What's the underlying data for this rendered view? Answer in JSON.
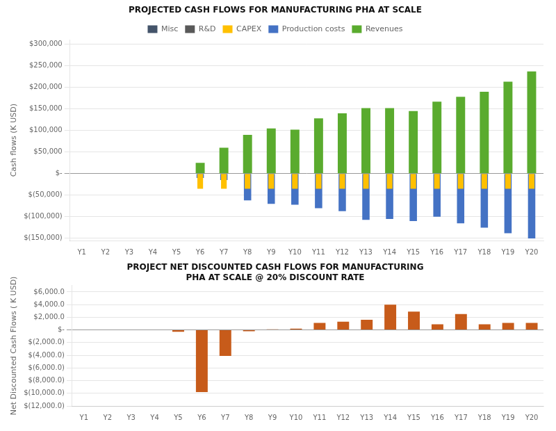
{
  "chart_data": [
    {
      "type": "bar",
      "title": "PROJECTED CASH FLOWS FOR MANUFACTURING PHA AT SCALE",
      "ylabel": "Cash flows (K USD)",
      "categories": [
        "Y1",
        "Y2",
        "Y3",
        "Y4",
        "Y5",
        "Y6",
        "Y7",
        "Y8",
        "Y9",
        "Y10",
        "Y11",
        "Y12",
        "Y13",
        "Y14",
        "Y15",
        "Y16",
        "Y17",
        "Y18",
        "Y19",
        "Y20"
      ],
      "series": [
        {
          "name": "Revenues",
          "color": "#5AAB2E",
          "values": [
            0,
            0,
            0,
            0,
            0,
            25000,
            60000,
            90000,
            105000,
            102000,
            128000,
            140000,
            152000,
            152000,
            145000,
            167000,
            178000,
            190000,
            213000,
            237000
          ]
        },
        {
          "name": "Production costs",
          "color": "#4472C4",
          "values": [
            0,
            0,
            0,
            0,
            0,
            -10000,
            -15000,
            -62000,
            -70000,
            -72000,
            -80000,
            -87000,
            -107000,
            -105000,
            -110000,
            -100000,
            -115000,
            -125000,
            -138000,
            -150000
          ]
        },
        {
          "name": "CAPEX",
          "color": "#FFC000",
          "values": [
            0,
            0,
            0,
            0,
            0,
            -35000,
            -35000,
            -35000,
            -35000,
            -35000,
            -35000,
            -35000,
            -35000,
            -35000,
            -35000,
            -35000,
            -35000,
            -35000,
            -35000,
            -35000
          ]
        },
        {
          "name": "R&D",
          "color": "#595959",
          "values": [
            0,
            0,
            0,
            0,
            0,
            0,
            0,
            0,
            0,
            0,
            0,
            0,
            0,
            0,
            0,
            0,
            0,
            0,
            0,
            0
          ]
        },
        {
          "name": "Misc",
          "color": "#44546A",
          "values": [
            0,
            0,
            0,
            0,
            0,
            0,
            0,
            0,
            0,
            0,
            0,
            0,
            0,
            0,
            0,
            0,
            0,
            0,
            0,
            0
          ]
        }
      ],
      "ylim": [
        -155000,
        310000
      ],
      "yticks": [
        {
          "value": -150000,
          "label": "$(150,000)"
        },
        {
          "value": -100000,
          "label": "$(100,000)"
        },
        {
          "value": -50000,
          "label": "$(50,000)"
        },
        {
          "value": 0,
          "label": "$-"
        },
        {
          "value": 50000,
          "label": "$50,000"
        },
        {
          "value": 100000,
          "label": "$100,000"
        },
        {
          "value": 150000,
          "label": "$150,000"
        },
        {
          "value": 200000,
          "label": "$200,000"
        },
        {
          "value": 250000,
          "label": "$250,000"
        },
        {
          "value": 300000,
          "label": "$300,000"
        }
      ],
      "grid": true,
      "legend": "top"
    },
    {
      "type": "bar",
      "title": "PROJECT NET DISCOUNTED CASH FLOWS FOR MANUFACTURING\nPHA AT SCALE @ 20% DISCOUNT RATE",
      "ylabel": "Net Discounted Cash Flows ( K USD)",
      "categories": [
        "Y1",
        "Y2",
        "Y3",
        "Y4",
        "Y5",
        "Y6",
        "Y7",
        "Y8",
        "Y9",
        "Y10",
        "Y11",
        "Y12",
        "Y13",
        "Y14",
        "Y15",
        "Y16",
        "Y17",
        "Y18",
        "Y19",
        "Y20"
      ],
      "values": [
        0,
        0,
        0,
        0,
        -300,
        -9800,
        -4100,
        -200,
        100,
        200,
        1100,
        1300,
        1600,
        4000,
        2900,
        900,
        2500,
        900,
        1100,
        1100
      ],
      "color": "#C75B1A",
      "ylim": [
        -12000,
        7000
      ],
      "yticks": [
        {
          "value": -12000,
          "label": "$(12,000.0)"
        },
        {
          "value": -10000,
          "label": "$(10,000.0)"
        },
        {
          "value": -8000,
          "label": "$(8,000.0)"
        },
        {
          "value": -6000,
          "label": "$(6,000.0)"
        },
        {
          "value": -4000,
          "label": "$(4,000.0)"
        },
        {
          "value": -2000,
          "label": "$(2,000.0)"
        },
        {
          "value": 0,
          "label": "$-"
        },
        {
          "value": 2000,
          "label": "$2,000.0"
        },
        {
          "value": 4000,
          "label": "$4,000.0"
        },
        {
          "value": 6000,
          "label": "$6,000.0"
        }
      ],
      "grid": true
    }
  ]
}
